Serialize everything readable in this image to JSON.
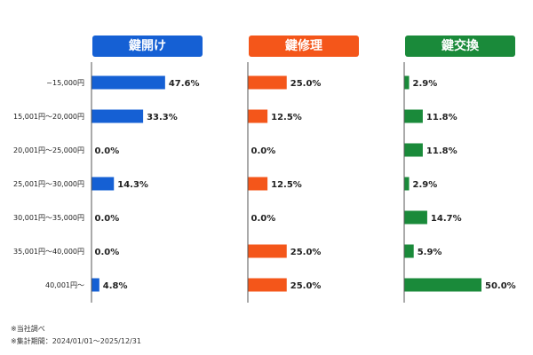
{
  "chart_data": {
    "type": "bar",
    "orientation": "horizontal",
    "categories": [
      "~15,000円",
      "15,001円～20,000円",
      "20,001円～25,000円",
      "25,001円～30,000円",
      "30,001円～35,000円",
      "35,001円～40,000円",
      "40,001円～"
    ],
    "series": [
      {
        "name": "鍵開け",
        "color": "#1560d4",
        "values": [
          47.6,
          33.3,
          0.0,
          14.3,
          0.0,
          0.0,
          4.8
        ]
      },
      {
        "name": "鍵修理",
        "color": "#f4561a",
        "values": [
          25.0,
          12.5,
          0.0,
          12.5,
          0.0,
          25.0,
          25.0
        ]
      },
      {
        "name": "鍵交換",
        "color": "#1a8a3a",
        "values": [
          2.9,
          11.8,
          11.8,
          2.9,
          14.7,
          5.9,
          50.0
        ]
      }
    ],
    "value_suffix": "%",
    "xlim": [
      0,
      100
    ],
    "grid": false
  },
  "notes": [
    "※当社調べ",
    "※集計期間：2024/01/01～2025/12/31"
  ]
}
